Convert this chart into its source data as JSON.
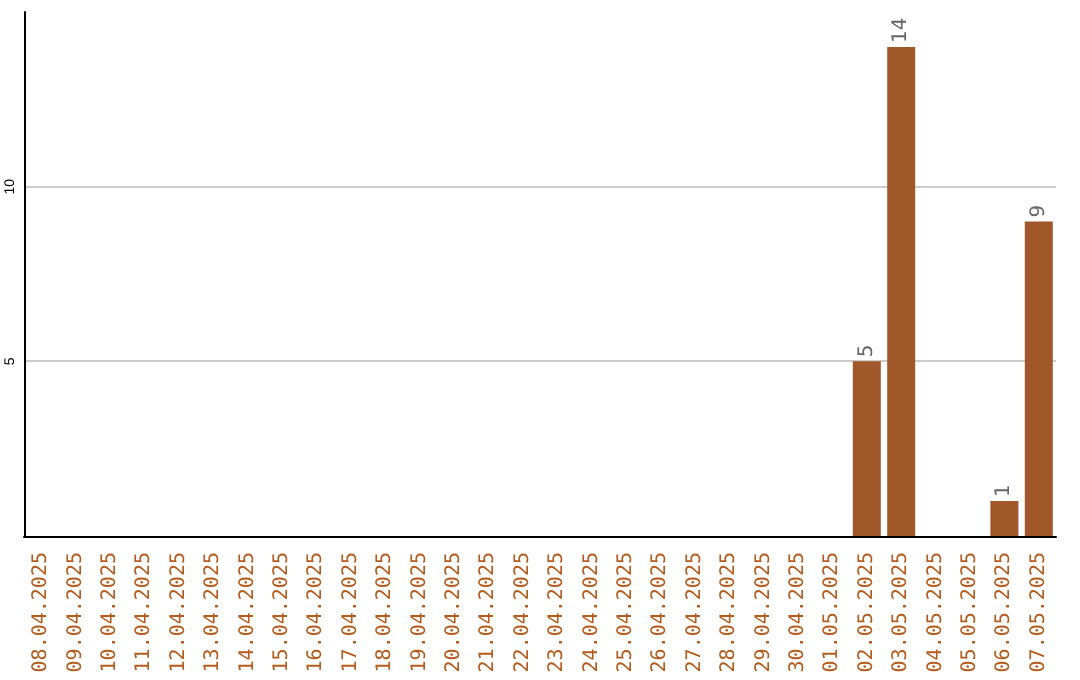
{
  "chart_data": {
    "type": "bar",
    "categories": [
      "08.04.2025",
      "09.04.2025",
      "10.04.2025",
      "11.04.2025",
      "12.04.2025",
      "13.04.2025",
      "14.04.2025",
      "15.04.2025",
      "16.04.2025",
      "17.04.2025",
      "18.04.2025",
      "19.04.2025",
      "20.04.2025",
      "21.04.2025",
      "22.04.2025",
      "23.04.2025",
      "24.04.2025",
      "25.04.2025",
      "26.04.2025",
      "27.04.2025",
      "28.04.2025",
      "29.04.2025",
      "30.04.2025",
      "01.05.2025",
      "02.05.2025",
      "03.05.2025",
      "04.05.2025",
      "05.05.2025",
      "06.05.2025",
      "07.05.2025"
    ],
    "values": [
      0,
      0,
      0,
      0,
      0,
      0,
      0,
      0,
      0,
      0,
      0,
      0,
      0,
      0,
      0,
      0,
      0,
      0,
      0,
      0,
      0,
      0,
      0,
      0,
      5,
      14,
      0,
      0,
      1,
      9
    ],
    "value_labels": [
      null,
      null,
      null,
      null,
      null,
      null,
      null,
      null,
      null,
      null,
      null,
      null,
      null,
      null,
      null,
      null,
      null,
      null,
      null,
      null,
      null,
      null,
      null,
      null,
      "5",
      "14",
      null,
      null,
      "1",
      "9"
    ],
    "color": "#a0582a",
    "ylim": [
      0,
      15
    ],
    "yticks": [
      5,
      10
    ],
    "grid": "y"
  }
}
